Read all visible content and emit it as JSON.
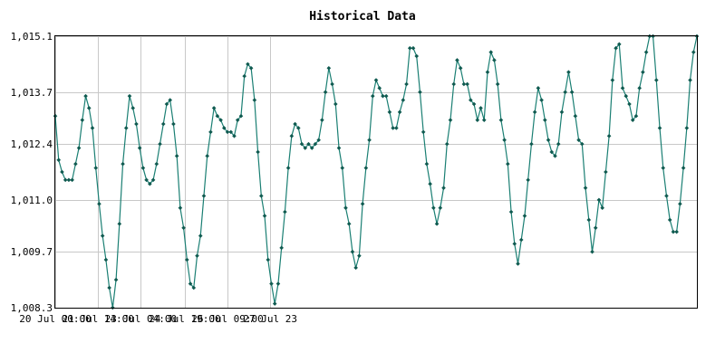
{
  "chart_data": {
    "type": "line",
    "title": "Historical Data",
    "xlabel": "",
    "ylabel": "",
    "x_range": [
      "2024-07-20 00:00",
      "2024-07-27 23:00"
    ],
    "x_step_hours": 3,
    "ylim": [
      1008.3,
      1015.1
    ],
    "yticks": [
      {
        "value": 1008.3,
        "label": "1,008.3"
      },
      {
        "value": 1009.7,
        "label": "1,009.7"
      },
      {
        "value": 1011.0,
        "label": "1,011.0"
      },
      {
        "value": 1012.4,
        "label": "1,012.4"
      },
      {
        "value": 1013.7,
        "label": "1,013.7"
      },
      {
        "value": 1015.1,
        "label": "1,015.1"
      }
    ],
    "xticks": [
      {
        "hours": 0,
        "label": "20 Jul 00:00"
      },
      {
        "hours": 38,
        "label": "21 Jul 14:00"
      },
      {
        "hours": 76,
        "label": "23 Jul 04:00"
      },
      {
        "hours": 115,
        "label": "24 Jul 19:00"
      },
      {
        "hours": 153,
        "label": "26 Jul 09:00"
      },
      {
        "hours": 191,
        "label": "27 Jul 23"
      }
    ],
    "grid": true,
    "line_color": "#1a7f73",
    "marker_color": "#0f5a50",
    "series": [
      {
        "name": "",
        "values": [
          1013.1,
          1012.0,
          1011.7,
          1011.5,
          1011.5,
          1011.5,
          1011.9,
          1012.3,
          1013.0,
          1013.6,
          1013.3,
          1012.8,
          1011.8,
          1010.9,
          1010.1,
          1009.5,
          1008.8,
          1008.3,
          1009.0,
          1010.4,
          1011.9,
          1012.8,
          1013.6,
          1013.3,
          1012.9,
          1012.3,
          1011.8,
          1011.5,
          1011.4,
          1011.5,
          1011.9,
          1012.4,
          1012.9,
          1013.4,
          1013.5,
          1012.9,
          1012.1,
          1010.8,
          1010.3,
          1009.5,
          1008.9,
          1008.8,
          1009.6,
          1010.1,
          1011.1,
          1012.1,
          1012.7,
          1013.3,
          1013.1,
          1013.0,
          1012.8,
          1012.7,
          1012.7,
          1012.6,
          1013.0,
          1013.1,
          1014.1,
          1014.4,
          1014.3,
          1013.5,
          1012.2,
          1011.1,
          1010.6,
          1009.5,
          1008.9,
          1008.4,
          1008.9,
          1009.8,
          1010.7,
          1011.8,
          1012.6,
          1012.9,
          1012.8,
          1012.4,
          1012.3,
          1012.4,
          1012.3,
          1012.4,
          1012.5,
          1013.0,
          1013.7,
          1014.3,
          1013.9,
          1013.4,
          1012.3,
          1011.8,
          1010.8,
          1010.4,
          1009.7,
          1009.3,
          1009.6,
          1010.9,
          1011.8,
          1012.5,
          1013.6,
          1014.0,
          1013.8,
          1013.6,
          1013.6,
          1013.2,
          1012.8,
          1012.8,
          1013.2,
          1013.5,
          1013.9,
          1014.8,
          1014.8,
          1014.6,
          1013.7,
          1012.7,
          1011.9,
          1011.4,
          1010.8,
          1010.4,
          1010.8,
          1011.3,
          1012.4,
          1013.0,
          1013.9,
          1014.5,
          1014.3,
          1013.9,
          1013.9,
          1013.5,
          1013.4,
          1013.0,
          1013.3,
          1013.0,
          1014.2,
          1014.7,
          1014.5,
          1013.9,
          1013.0,
          1012.5,
          1011.9,
          1010.7,
          1009.9,
          1009.4,
          1010.0,
          1010.6,
          1011.5,
          1012.4,
          1013.2,
          1013.8,
          1013.5,
          1013.0,
          1012.5,
          1012.2,
          1012.1,
          1012.4,
          1013.2,
          1013.7,
          1014.2,
          1013.7,
          1013.1,
          1012.5,
          1012.4,
          1011.3,
          1010.5,
          1009.7,
          1010.3,
          1011.0,
          1010.8,
          1011.7,
          1012.6,
          1014.0,
          1014.8,
          1014.9,
          1013.8,
          1013.6,
          1013.4,
          1013.0,
          1013.1,
          1013.8,
          1014.2,
          1014.7,
          1015.1,
          1015.1,
          1014.0,
          1012.8,
          1011.8,
          1011.1,
          1010.5,
          1010.2,
          1010.2,
          1010.9,
          1011.8,
          1012.8,
          1014.0,
          1014.7,
          1015.1
        ]
      }
    ]
  }
}
